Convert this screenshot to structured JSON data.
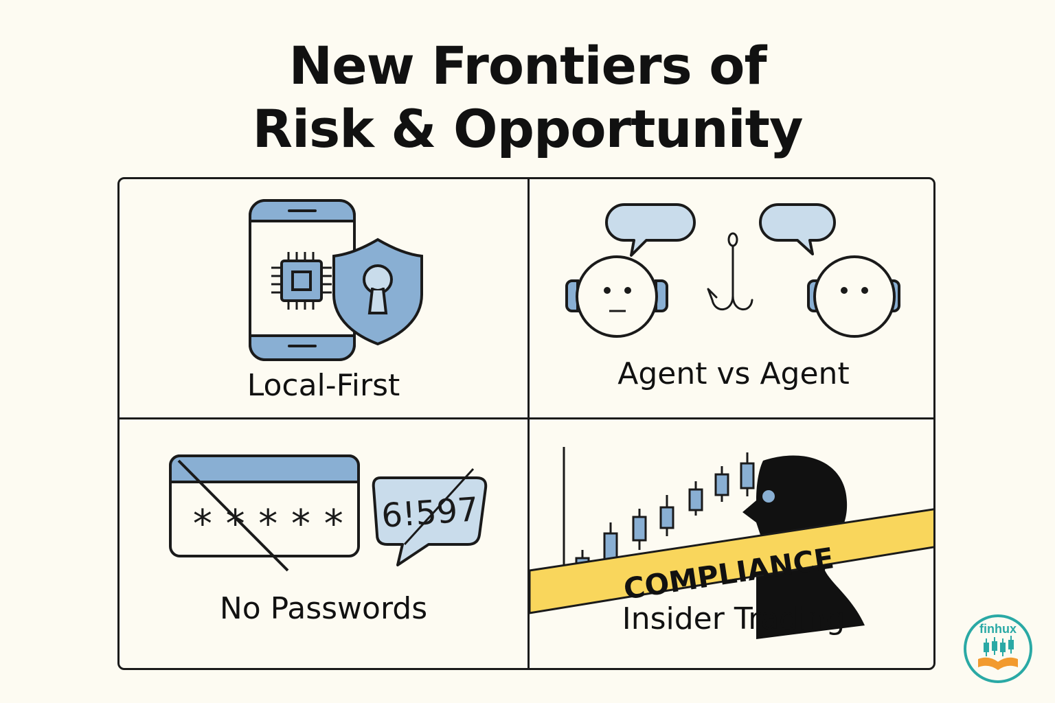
{
  "title": {
    "line1": "New Frontiers of",
    "line2": "Risk & Opportunity"
  },
  "panels": [
    {
      "label": "Local-First",
      "icons": [
        "smartphone-icon",
        "chip-icon",
        "shield-lock-icon"
      ]
    },
    {
      "label": "Agent vs Agent",
      "icons": [
        "robot-head-icon",
        "speech-bubble-icon",
        "fishing-hook-icon"
      ]
    },
    {
      "label": "No Passwords",
      "icons": [
        "password-field-icon",
        "otp-chat-bubble-icon"
      ],
      "masked_password": "*****",
      "code": "6!597"
    },
    {
      "label": "Insider Trading",
      "icons": [
        "candlestick-chart-icon",
        "silhouette-head-icon"
      ],
      "tape_text": "COMPLIANCE"
    }
  ],
  "logo": {
    "text": "finhux"
  },
  "colors": {
    "background": "#fdfbf2",
    "accent_blue": "#89afd3",
    "light_blue": "#c9dceb",
    "tape_yellow": "#f9d65c",
    "ink": "#1a1a1a",
    "logo_teal": "#2aa9a5",
    "logo_orange": "#f29a2e"
  }
}
